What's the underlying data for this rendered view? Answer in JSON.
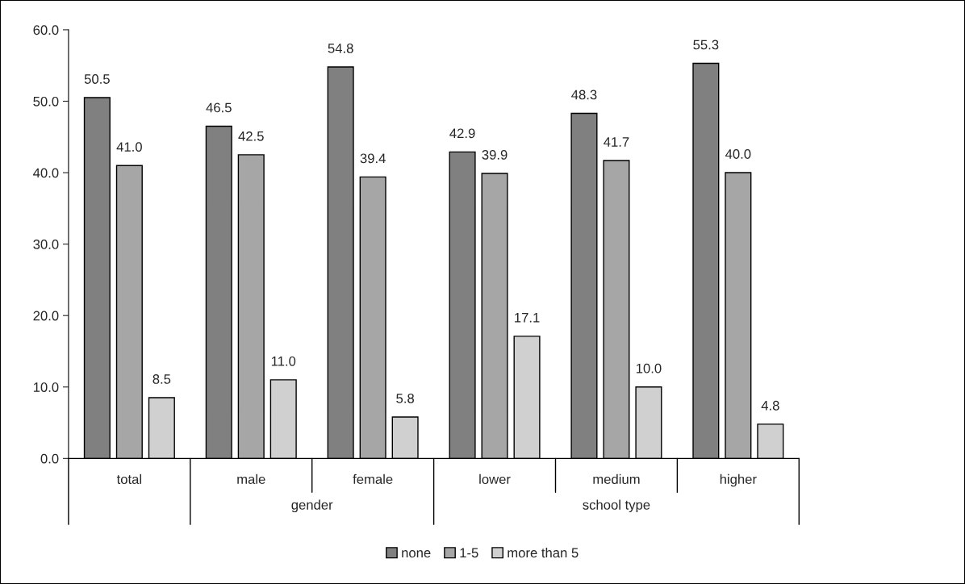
{
  "chart_data": {
    "type": "bar",
    "categories": [
      "total",
      "male",
      "female",
      "lower",
      "medium",
      "higher"
    ],
    "series": [
      {
        "name": "none",
        "color": "#808080",
        "values": [
          50.5,
          46.5,
          54.8,
          42.9,
          48.3,
          55.3
        ],
        "value_labels": [
          "50.5",
          "46.5",
          "54.8",
          "42.9",
          "48.3",
          "55.3"
        ]
      },
      {
        "name": "1-5",
        "color": "#a6a6a6",
        "values": [
          41.0,
          42.5,
          39.4,
          39.9,
          41.7,
          40.0
        ],
        "value_labels": [
          "41.0",
          "42.5",
          "39.4",
          "39.9",
          "41.7",
          "40.0"
        ]
      },
      {
        "name": "more than 5",
        "color": "#d0d0d0",
        "values": [
          8.5,
          11.0,
          5.8,
          17.1,
          10.0,
          4.8
        ],
        "value_labels": [
          "8.5",
          "11.0",
          "5.8",
          "17.1",
          "10.0",
          "4.8"
        ]
      }
    ],
    "ylim": [
      0,
      60
    ],
    "yticks": [
      {
        "value": 0,
        "label": "0.0"
      },
      {
        "value": 10,
        "label": "10.0"
      },
      {
        "value": 20,
        "label": "20.0"
      },
      {
        "value": 30,
        "label": "30.0"
      },
      {
        "value": 40,
        "label": "40.0"
      },
      {
        "value": 50,
        "label": "50.0"
      },
      {
        "value": 60,
        "label": "60.0"
      }
    ],
    "annotations": [
      "gender",
      "school type"
    ],
    "grid": false,
    "legend": "bottom"
  }
}
